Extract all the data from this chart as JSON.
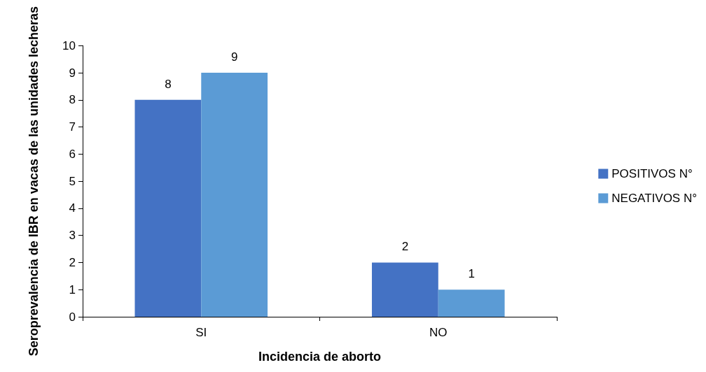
{
  "chart_data": {
    "type": "bar",
    "xlabel": "Incidencia de aborto",
    "ylabel": "Seroprevalencia de IBR en vacas de las unidades lecheras",
    "categories": [
      "SI",
      "NO"
    ],
    "series": [
      {
        "name": "POSITIVOS N°",
        "color": "#4472c4",
        "values": [
          8,
          2
        ]
      },
      {
        "name": "NEGATIVOS N°",
        "color": "#5b9bd5",
        "values": [
          9,
          1
        ]
      }
    ],
    "ylim": [
      0,
      10
    ],
    "yticks": [
      0,
      1,
      2,
      3,
      4,
      5,
      6,
      7,
      8,
      9,
      10
    ],
    "grid": false,
    "legend": "right",
    "data_labels": true
  }
}
